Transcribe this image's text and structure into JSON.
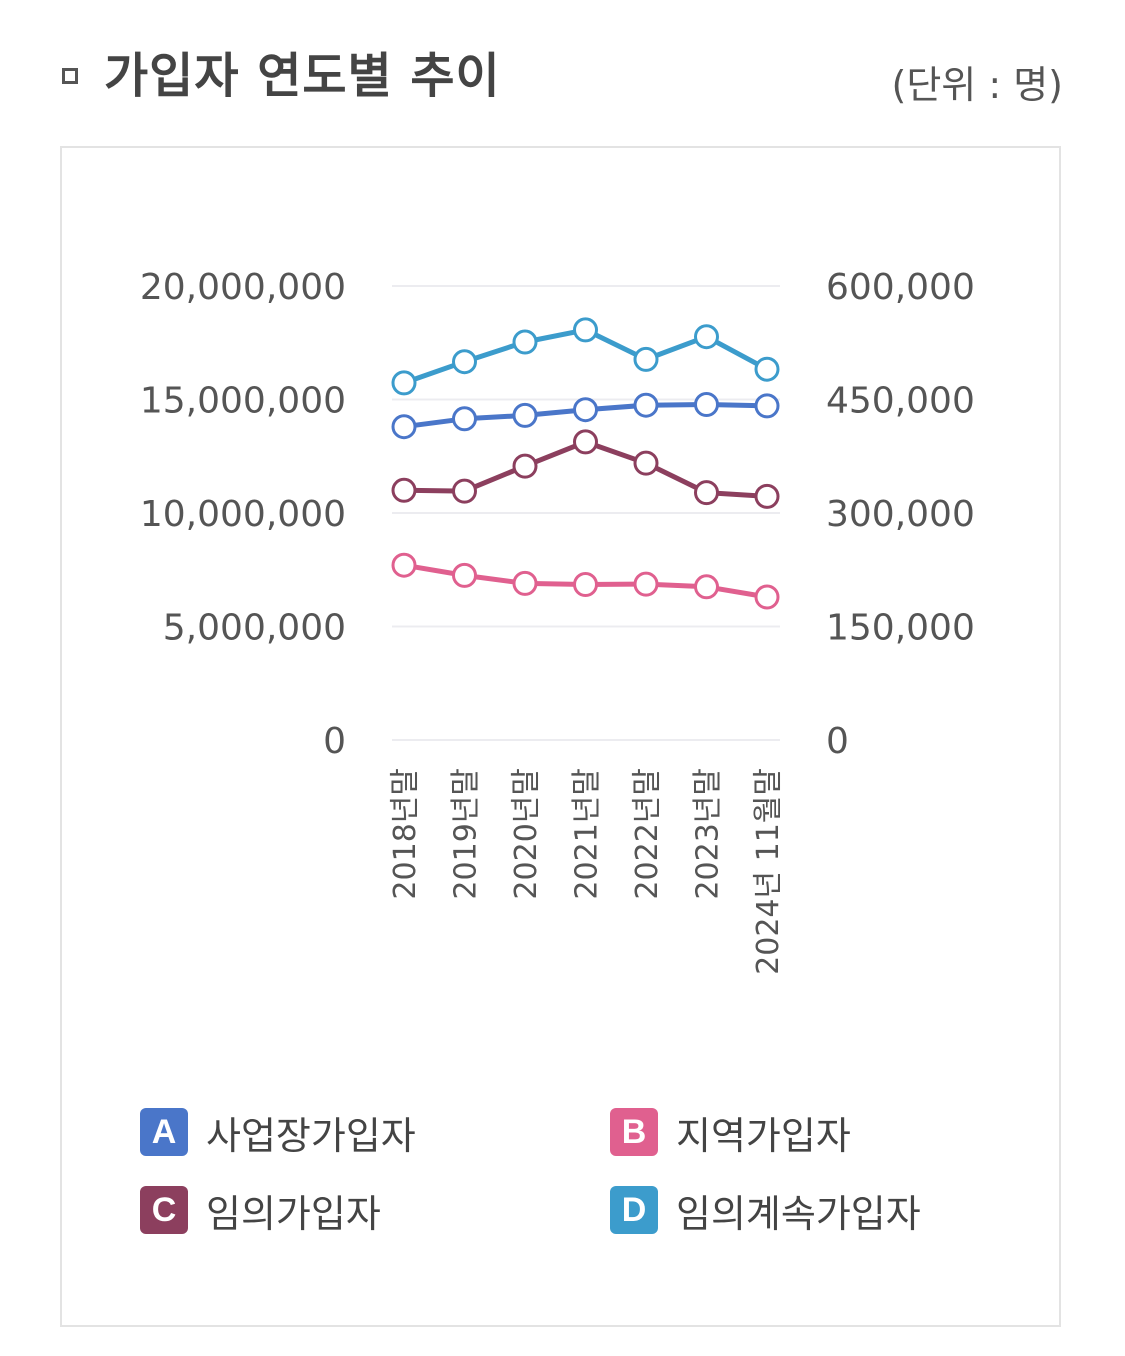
{
  "header": {
    "title": "가입자 연도별 추이",
    "unit": "(단위 : 명)"
  },
  "colors": {
    "A": "#4a76c9",
    "B": "#e0608f",
    "C": "#8c3f5e",
    "D": "#3c9ccc",
    "grid": "#ececf0",
    "text": "#555555"
  },
  "legend": [
    {
      "badge": "A",
      "label": "사업장가입자"
    },
    {
      "badge": "B",
      "label": "지역가입자"
    },
    {
      "badge": "C",
      "label": "임의가입자"
    },
    {
      "badge": "D",
      "label": "임의계속가입자"
    }
  ],
  "chart_data": {
    "type": "line",
    "title": "가입자 연도별 추이",
    "unit": "(단위 : 명)",
    "categories": [
      "2018년말",
      "2019년말",
      "2020년말",
      "2021년말",
      "2022년말",
      "2023년말",
      "2024년 11월말"
    ],
    "left_axis": {
      "range": [
        0,
        20000000
      ],
      "ticks": [
        "0",
        "5,000,000",
        "10,000,000",
        "15,000,000",
        "20,000,000"
      ]
    },
    "right_axis": {
      "range": [
        0,
        600000
      ],
      "ticks": [
        "0",
        "150,000",
        "300,000",
        "450,000",
        "600,000"
      ]
    },
    "grid": true,
    "legend_position": "bottom",
    "series": [
      {
        "name": "사업장가입자",
        "badge": "A",
        "axis": "left",
        "values": [
          13800000,
          14150000,
          14300000,
          14550000,
          14750000,
          14780000,
          14720000
        ]
      },
      {
        "name": "지역가입자",
        "badge": "B",
        "axis": "left",
        "values": [
          7700000,
          7250000,
          6900000,
          6850000,
          6870000,
          6750000,
          6300000
        ]
      },
      {
        "name": "임의가입자",
        "badge": "C",
        "axis": "right",
        "values": [
          330000,
          329000,
          362000,
          394000,
          366000,
          327000,
          322000
        ]
      },
      {
        "name": "임의계속가입자",
        "badge": "D",
        "axis": "right",
        "values": [
          472000,
          500000,
          526000,
          542000,
          503000,
          533000,
          490000
        ]
      }
    ]
  }
}
